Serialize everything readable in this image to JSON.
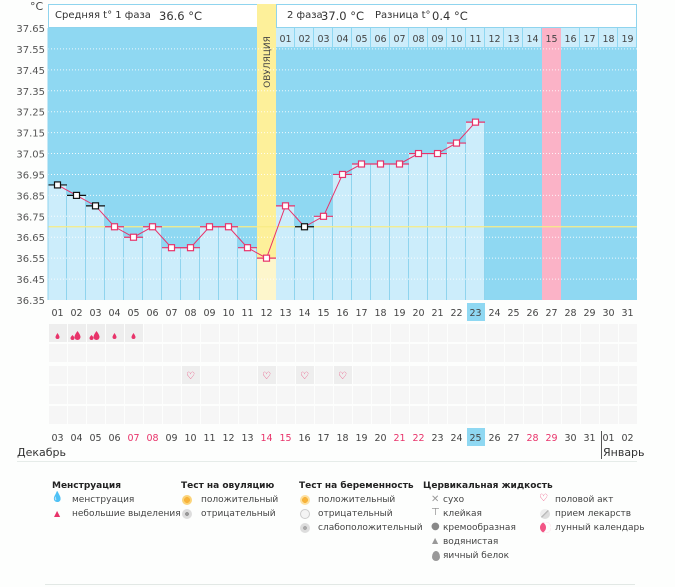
{
  "header": {
    "unit": "°C",
    "phase1_label": "Средняя t° 1 фаза",
    "phase1_value": "36.6 °C",
    "phase2_label": "2 фаза",
    "phase2_value": "37.0 °C",
    "diff_label": "Разница t°",
    "diff_value": "0.4 °C",
    "ovulation_label": "ОВУЛЯЦИЯ"
  },
  "chart_data": {
    "type": "line",
    "title": "",
    "ylabel": "°C",
    "xlabel": "",
    "ylim": [
      36.35,
      37.65
    ],
    "y_ticks": [
      "37.65",
      "37.55",
      "37.45",
      "37.35",
      "37.25",
      "37.15",
      "37.05",
      "36.95",
      "36.85",
      "36.75",
      "36.65",
      "36.55",
      "36.45",
      "36.35"
    ],
    "cycle_days": [
      "01",
      "02",
      "03",
      "04",
      "05",
      "06",
      "07",
      "08",
      "09",
      "10",
      "11",
      "12",
      "13",
      "14",
      "15",
      "16",
      "17",
      "18",
      "19",
      "20",
      "21",
      "22",
      "23",
      "24",
      "25",
      "26",
      "27",
      "28",
      "29",
      "30",
      "31"
    ],
    "today_cycle_day": "23",
    "ovulation_cycle_day": "12",
    "coverline": 36.7,
    "temperatures": [
      36.9,
      36.85,
      36.8,
      36.7,
      36.65,
      36.7,
      36.6,
      36.6,
      36.7,
      36.7,
      36.6,
      36.55,
      36.8,
      36.7,
      36.75,
      36.95,
      37.0,
      37.0,
      37.0,
      37.05,
      37.05,
      37.1,
      37.2
    ],
    "excluded_days": [
      "01",
      "02",
      "03",
      "14"
    ],
    "luteal_day_labels": [
      "01",
      "02",
      "03",
      "04",
      "05",
      "06",
      "07",
      "08",
      "09",
      "10",
      "11",
      "12",
      "13",
      "14",
      "15",
      "16",
      "17",
      "18",
      "19"
    ],
    "expected_period_luteal_day": "15",
    "colors": {
      "background": "#8fd8f2",
      "bar": "#ccedfb",
      "line": "#e8336a",
      "ovulation": "#fdf09a",
      "coverline": "#f8ec86",
      "period": "#fbb3c7"
    }
  },
  "calendar": {
    "dates": [
      "03",
      "04",
      "05",
      "06",
      "07",
      "08",
      "09",
      "10",
      "11",
      "12",
      "13",
      "14",
      "15",
      "16",
      "17",
      "18",
      "19",
      "20",
      "21",
      "22",
      "23",
      "24",
      "25",
      "26",
      "27",
      "28",
      "29",
      "30",
      "31",
      "01",
      "02"
    ],
    "weekend_indices": [
      4,
      5,
      11,
      12,
      18,
      19,
      25,
      26
    ],
    "today_index": 22,
    "month_start": "Декабрь",
    "month_next": "Январь",
    "month_split_index": 29,
    "menstruation": [
      {
        "day": 0,
        "type": "light"
      },
      {
        "day": 1,
        "type": "heavy"
      },
      {
        "day": 2,
        "type": "heavy"
      },
      {
        "day": 3,
        "type": "light"
      },
      {
        "day": 4,
        "type": "light"
      }
    ],
    "intercourse_days": [
      7,
      11,
      13,
      15
    ]
  },
  "legend": {
    "menstruation": {
      "title": "Менструация",
      "items": [
        "менструация",
        "небольшие выделения"
      ]
    },
    "ovulation_test": {
      "title": "Тест на овуляцию",
      "items": [
        "положительный",
        "отрицательный"
      ]
    },
    "pregnancy_test": {
      "title": "Тест на беременность",
      "items": [
        "положительный",
        "отрицательный",
        "слабоположительный"
      ]
    },
    "cervical_fluid": {
      "title": "Цервикальная жидкость",
      "items": [
        "сухо",
        "клейкая",
        "кремообразная",
        "водянистая",
        "яичный белок"
      ]
    },
    "other": {
      "items": [
        "половой акт",
        "прием лекарств",
        "лунный календарь"
      ]
    }
  }
}
